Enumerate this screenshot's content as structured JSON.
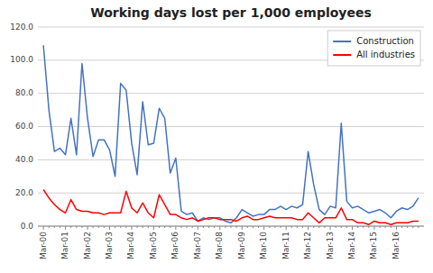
{
  "chart_data": {
    "type": "line",
    "title": "Working days lost per 1,000 employees",
    "categories": [
      "Mar-00",
      null,
      null,
      null,
      "Mar-01",
      null,
      null,
      null,
      "Mar-02",
      null,
      null,
      null,
      "Mar-03",
      null,
      null,
      null,
      "Mar-04",
      null,
      null,
      null,
      "Mar-05",
      null,
      null,
      null,
      "Mar-06",
      null,
      null,
      null,
      "Mar-07",
      null,
      null,
      null,
      "Mar-08",
      null,
      null,
      null,
      "Mar-09",
      null,
      null,
      null,
      "Mar-10",
      null,
      null,
      null,
      "Mar-11",
      null,
      null,
      null,
      "Mar-12",
      null,
      null,
      null,
      "Mar-13",
      null,
      null,
      null,
      "Mar-14",
      null,
      null,
      null,
      "Mar-15",
      null,
      null,
      null,
      "Mar-16",
      null,
      null,
      null,
      null
    ],
    "series": [
      {
        "name": "Construction",
        "color": "#4472C4",
        "values": [
          109,
          70,
          45,
          47,
          43,
          65,
          43,
          98,
          65,
          42,
          52,
          52,
          46,
          30,
          86,
          82,
          50,
          31,
          75,
          49,
          50,
          71,
          65,
          32,
          41,
          9,
          7,
          8,
          3,
          5,
          4,
          5,
          5,
          3,
          2,
          5,
          10,
          8,
          6,
          7,
          7,
          10,
          10,
          12,
          10,
          12,
          11,
          13,
          45,
          25,
          10,
          7,
          12,
          11,
          62,
          15,
          11,
          12,
          10,
          8,
          9,
          10,
          8,
          5,
          9,
          11,
          10,
          12,
          17
        ]
      },
      {
        "name": "All industries",
        "color": "#FF0000",
        "values": [
          22,
          17,
          13,
          10,
          8,
          16,
          10,
          9,
          9,
          8,
          8,
          7,
          8,
          8,
          8,
          21,
          11,
          8,
          14,
          8,
          5,
          19,
          13,
          7,
          7,
          5,
          4,
          5,
          3,
          4,
          5,
          5,
          4,
          4,
          4,
          3,
          5,
          6,
          4,
          4,
          5,
          6,
          5,
          5,
          5,
          5,
          4,
          4,
          8,
          5,
          2,
          5,
          5,
          5,
          11,
          4,
          4,
          2,
          2,
          1,
          3,
          2,
          2,
          1,
          2,
          2,
          2,
          3,
          3
        ]
      }
    ],
    "ylim": [
      0,
      120
    ],
    "yticks": [
      {
        "value": 0,
        "label": "0.0"
      },
      {
        "value": 20,
        "label": "20.0"
      },
      {
        "value": 40,
        "label": "40.0"
      },
      {
        "value": 60,
        "label": "60.0"
      },
      {
        "value": 80,
        "label": "80.0"
      },
      {
        "value": 100,
        "label": "100.0"
      },
      {
        "value": 120,
        "label": "120.0"
      }
    ],
    "grid": true,
    "legend": "upper right"
  }
}
